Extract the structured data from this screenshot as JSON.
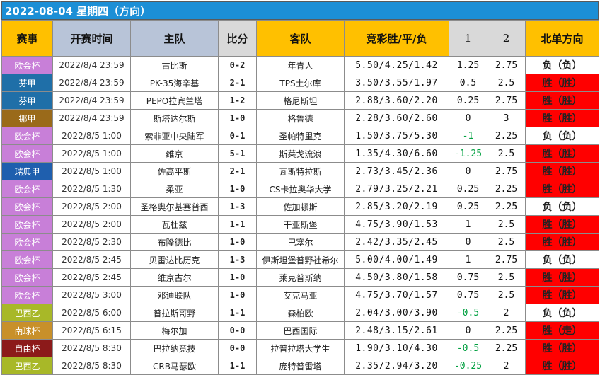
{
  "title": "2022-08-04 星期四（方向）",
  "headers": {
    "event": "赛事",
    "time": "开赛时间",
    "home": "主队",
    "score": "比分",
    "away": "客队",
    "odds": "竞彩胜/平/负",
    "one": "1",
    "two": "2",
    "direction": "北单方向"
  },
  "colors": {
    "欧会杯": "#c87fd8",
    "芬甲": "#1f6fa8",
    "挪甲": "#9a6a1a",
    "瑞典甲": "#1f5fae",
    "巴西乙": "#a8b828",
    "南球杯": "#c8902a",
    "自由杯": "#8c1a1a",
    "win": "#ff0000",
    "lose": "#ffffff"
  },
  "rows": [
    {
      "event": "欧会杯",
      "time": "2022/8/4 23:59",
      "home": "古比斯",
      "score": "0-2",
      "away": "年青人",
      "odds": "5.50/4.25/1.42",
      "one": "1.25",
      "two": "2.75",
      "dir": "负（负）"
    },
    {
      "event": "芬甲",
      "time": "2022/8/4 23:59",
      "home": "PK-35海辛基",
      "score": "2-1",
      "away": "TPS土尔库",
      "odds": "3.50/3.55/1.97",
      "one": "0.5",
      "two": "2.5",
      "dir": "胜（胜）"
    },
    {
      "event": "芬甲",
      "time": "2022/8/4 23:59",
      "home": "PEPO拉宾兰塔",
      "score": "1-2",
      "away": "格尼斯坦",
      "odds": "2.88/3.60/2.20",
      "one": "0.25",
      "two": "2.75",
      "dir": "胜（胜）"
    },
    {
      "event": "挪甲",
      "time": "2022/8/4 23:59",
      "home": "斯塔达尔斯",
      "score": "1-0",
      "away": "格鲁德",
      "odds": "2.28/3.60/2.60",
      "one": "0",
      "two": "3",
      "dir": "胜（胜）"
    },
    {
      "event": "欧会杯",
      "time": "2022/8/5 1:00",
      "home": "索非亚中央陆军",
      "score": "0-1",
      "away": "圣帕特里克",
      "odds": "1.50/3.75/5.30",
      "one": "-1",
      "two": "2.25",
      "dir": "负（负）"
    },
    {
      "event": "欧会杯",
      "time": "2022/8/5 1:00",
      "home": "维京",
      "score": "5-1",
      "away": "斯莱戈流浪",
      "odds": "1.35/4.30/6.60",
      "one": "-1.25",
      "two": "2.5",
      "dir": "胜（胜）"
    },
    {
      "event": "瑞典甲",
      "time": "2022/8/5 1:00",
      "home": "佐高平斯",
      "score": "2-1",
      "away": "瓦斯特拉斯",
      "odds": "2.73/3.45/2.36",
      "one": "0",
      "two": "2.75",
      "dir": "胜（胜）"
    },
    {
      "event": "欧会杯",
      "time": "2022/8/5 1:30",
      "home": "柔亚",
      "score": "1-0",
      "away": "CS卡拉奥华大学",
      "odds": "2.79/3.25/2.21",
      "one": "0.25",
      "two": "2.25",
      "dir": "胜（胜）"
    },
    {
      "event": "欧会杯",
      "time": "2022/8/5 2:00",
      "home": "圣格奥尔基塞普西",
      "score": "1-3",
      "away": "佐加顿斯",
      "odds": "2.85/3.20/2.19",
      "one": "0.25",
      "two": "2.25",
      "dir": "负（负）"
    },
    {
      "event": "欧会杯",
      "time": "2022/8/5 2:00",
      "home": "瓦杜兹",
      "score": "1-1",
      "away": "干亚斯堡",
      "odds": "4.75/3.90/1.53",
      "one": "1",
      "two": "2.5",
      "dir": "胜（胜）"
    },
    {
      "event": "欧会杯",
      "time": "2022/8/5 2:30",
      "home": "布隆德比",
      "score": "1-0",
      "away": "巴塞尔",
      "odds": "2.42/3.35/2.45",
      "one": "0",
      "two": "2.5",
      "dir": "胜（胜）"
    },
    {
      "event": "欧会杯",
      "time": "2022/8/5 2:45",
      "home": "贝雷达比历克",
      "score": "1-3",
      "away": "伊斯坦堡普野社希尔",
      "odds": "5.00/4.00/1.49",
      "one": "1",
      "two": "2.75",
      "dir": "负（负）"
    },
    {
      "event": "欧会杯",
      "time": "2022/8/5 2:45",
      "home": "维京古尔",
      "score": "1-0",
      "away": "莱克普斯纳",
      "odds": "4.50/3.80/1.58",
      "one": "0.75",
      "two": "2.5",
      "dir": "胜（胜）"
    },
    {
      "event": "欧会杯",
      "time": "2022/8/5 3:00",
      "home": "邓迪联队",
      "score": "1-0",
      "away": "艾克马亚",
      "odds": "4.75/3.70/1.57",
      "one": "0.75",
      "two": "2.5",
      "dir": "胜（胜）"
    },
    {
      "event": "巴西乙",
      "time": "2022/8/5 6:00",
      "home": "普拉斯哥野",
      "score": "1-1",
      "away": "森柏欧",
      "odds": "2.04/3.00/3.90",
      "one": "-0.5",
      "two": "2",
      "dir": "负（负）"
    },
    {
      "event": "南球杯",
      "time": "2022/8/5 6:15",
      "home": "梅尔加",
      "score": "0-0",
      "away": "巴西国际",
      "odds": "2.48/3.15/2.61",
      "one": "0",
      "two": "2.25",
      "dir": "胜（走）"
    },
    {
      "event": "自由杯",
      "time": "2022/8/5 8:30",
      "home": "巴拉纳竞技",
      "score": "0-0",
      "away": "拉普拉塔大学生",
      "odds": "1.90/3.10/4.30",
      "one": "-0.5",
      "two": "2.25",
      "dir": "胜（胜）"
    },
    {
      "event": "巴西乙",
      "time": "2022/8/5 8:30",
      "home": "CRB马瑟欧",
      "score": "1-1",
      "away": "庞特普雷塔",
      "odds": "2.35/2.94/3.20",
      "one": "-0.25",
      "two": "2",
      "dir": "胜（胜）"
    }
  ]
}
